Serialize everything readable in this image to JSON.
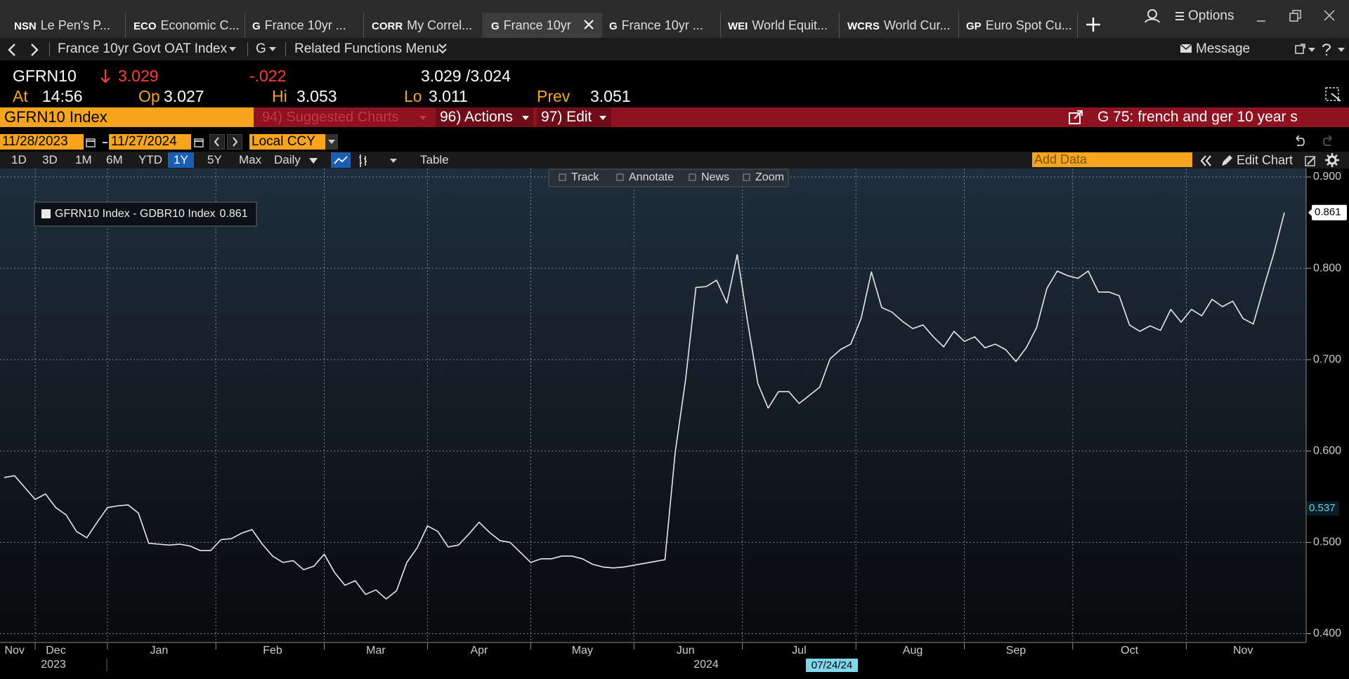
{
  "tabs": [
    {
      "code": "NSN",
      "label": "Le Pen's P..."
    },
    {
      "code": "ECO",
      "label": "Economic C..."
    },
    {
      "code": "G",
      "label": "France 10yr ..."
    },
    {
      "code": "CORR",
      "label": "My Correl..."
    },
    {
      "code": "G",
      "label": "France 10yr",
      "selected": true
    },
    {
      "code": "G",
      "label": "France 10yr ..."
    },
    {
      "code": "WEI",
      "label": "World Equit..."
    },
    {
      "code": "WCRS",
      "label": "World Cur..."
    },
    {
      "code": "GP",
      "label": "Euro Spot Cu..."
    }
  ],
  "options": "Options",
  "nav": {
    "security": "France 10yr Govt OAT Index",
    "function": "G",
    "menu": "Related Functions Menu",
    "message": "Message"
  },
  "quote": {
    "ticker": "GFRN10",
    "last": "3.029",
    "change": "-.022",
    "bid_ask": "3.029 /3.024",
    "at_label": "At",
    "time": "14:56",
    "open_label": "Op",
    "open": "3.027",
    "high_label": "Hi",
    "high": "3.053",
    "low_label": "Lo",
    "low": "3.011",
    "prev_label": "Prev",
    "prev": "3.051"
  },
  "command_bar": {
    "security": "GFRN10 Index",
    "suggested": "94) Suggested Charts",
    "actions": "96) Actions",
    "edit": "97) Edit",
    "chart_title": "G 75: french and ger 10 year s"
  },
  "date_range": {
    "start": "11/28/2023",
    "end": "11/27/2024",
    "currency": "Local CCY"
  },
  "periods": [
    "1D",
    "3D",
    "1M",
    "6M",
    "YTD",
    "1Y",
    "5Y",
    "Max"
  ],
  "selected_period": "1Y",
  "frequency": "Daily",
  "table": "Table",
  "add_data": "Add Data",
  "edit_chart": "Edit Chart",
  "chart_tools": [
    "Track",
    "Annotate",
    "News",
    "Zoom"
  ],
  "chart_data": {
    "type": "line",
    "categories": [
      null,
      "Nov",
      null,
      null,
      null,
      "Dec",
      null,
      null,
      null,
      null,
      null,
      null,
      null,
      null,
      null,
      "Jan",
      null,
      null,
      null,
      null,
      null,
      null,
      null,
      null,
      null,
      null,
      "Feb",
      null,
      null,
      null,
      null,
      null,
      null,
      null,
      null,
      null,
      "Mar",
      null,
      null,
      null,
      null,
      null,
      null,
      null,
      null,
      null,
      "Apr",
      null,
      null,
      null,
      null,
      null,
      null,
      null,
      null,
      null,
      "May",
      null,
      null,
      null,
      null,
      null,
      null,
      null,
      null,
      null,
      "Jun",
      null,
      null,
      null,
      null,
      null,
      null,
      null,
      null,
      null,
      null,
      "Jul",
      null,
      null,
      null,
      null,
      null,
      null,
      null,
      null,
      null,
      null,
      "Aug",
      null,
      null,
      null,
      null,
      null,
      null,
      null,
      null,
      null,
      "Sep",
      null,
      null,
      null,
      null,
      null,
      null,
      null,
      null,
      null,
      null,
      "Oct",
      null,
      null,
      null,
      null,
      null,
      null,
      null,
      null,
      null,
      null,
      "Nov",
      null,
      null,
      null,
      null
    ],
    "series": [
      {
        "name": "GFRN10 Index - GDBR10 Index",
        "color": "#e8e8e8",
        "values": [
          0.571,
          0.573,
          0.56,
          0.547,
          0.553,
          0.538,
          0.53,
          0.512,
          0.505,
          0.522,
          0.538,
          0.54,
          0.541,
          0.532,
          0.499,
          0.498,
          0.497,
          0.498,
          0.496,
          0.491,
          0.491,
          0.503,
          0.504,
          0.51,
          0.514,
          0.498,
          0.485,
          0.478,
          0.48,
          0.47,
          0.474,
          0.487,
          0.467,
          0.453,
          0.458,
          0.443,
          0.448,
          0.438,
          0.447,
          0.478,
          0.494,
          0.518,
          0.512,
          0.495,
          0.497,
          0.509,
          0.522,
          0.511,
          0.502,
          0.5,
          0.489,
          0.478,
          0.482,
          0.482,
          0.485,
          0.485,
          0.482,
          0.476,
          0.473,
          0.472,
          0.473,
          0.475,
          0.477,
          0.479,
          0.481,
          0.599,
          0.678,
          0.779,
          0.78,
          0.787,
          0.762,
          0.815,
          0.742,
          0.674,
          0.647,
          0.665,
          0.665,
          0.652,
          0.661,
          0.67,
          0.701,
          0.711,
          0.717,
          0.745,
          0.796,
          0.757,
          0.752,
          0.742,
          0.734,
          0.738,
          0.725,
          0.714,
          0.731,
          0.72,
          0.725,
          0.713,
          0.717,
          0.711,
          0.698,
          0.713,
          0.735,
          0.778,
          0.797,
          0.792,
          0.789,
          0.797,
          0.774,
          0.774,
          0.77,
          0.738,
          0.731,
          0.737,
          0.732,
          0.755,
          0.741,
          0.755,
          0.748,
          0.766,
          0.758,
          0.764,
          0.745,
          0.739,
          0.779,
          0.817,
          0.861
        ]
      }
    ],
    "reference_value": 0.537,
    "year_labels": [
      "2023",
      "2024"
    ],
    "cursor_date": "07/24/24",
    "ylim": [
      0.4,
      0.9
    ],
    "yticks": [
      {
        "value": 0.9,
        "label": "0.900"
      },
      {
        "value": 0.8,
        "label": "0.800"
      },
      {
        "value": 0.7,
        "label": "0.700"
      },
      {
        "value": 0.6,
        "label": "0.600"
      },
      {
        "value": 0.5,
        "label": "0.500"
      },
      {
        "value": 0.4,
        "label": "0.400"
      }
    ],
    "grid": true
  }
}
